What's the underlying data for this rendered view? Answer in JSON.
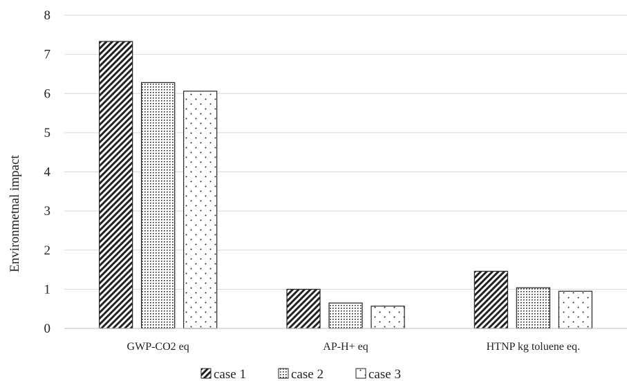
{
  "chart_data": {
    "type": "bar",
    "title": "",
    "xlabel": "",
    "ylabel": "Environmetnal impact",
    "ylim": [
      0,
      8
    ],
    "yticks": [
      0,
      1,
      2,
      3,
      4,
      5,
      6,
      7,
      8
    ],
    "grid": true,
    "legend_position": "bottom",
    "categories": [
      "GWP-CO2 eq",
      "AP-H+ eq",
      "HTNP kg toluene eq."
    ],
    "series": [
      {
        "name": "case 1",
        "pattern": "diagonal-stripes",
        "values": [
          7.33,
          1.0,
          1.46
        ]
      },
      {
        "name": "case 2",
        "pattern": "fine-dots",
        "values": [
          6.28,
          0.65,
          1.04
        ]
      },
      {
        "name": "case 3",
        "pattern": "sparse-dots",
        "values": [
          6.06,
          0.57,
          0.95
        ]
      }
    ],
    "colors": {
      "bar_stroke": "#222222",
      "grid": "#d9d9d9",
      "text": "#222222"
    }
  }
}
